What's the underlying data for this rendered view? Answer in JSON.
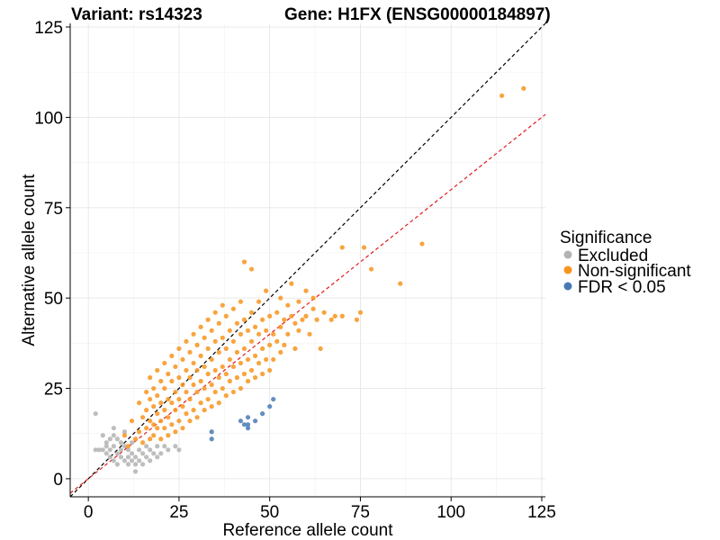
{
  "chart_data": {
    "type": "scatter",
    "title_left": "Variant: rs14323",
    "title_right": "Gene: H1FX (ENSG00000184897)",
    "xlabel": "Reference allele count",
    "ylabel": "Alternative allele count",
    "xlim": [
      -5,
      126
    ],
    "ylim": [
      -5,
      126
    ],
    "x_ticks": [
      0,
      25,
      50,
      75,
      100,
      125
    ],
    "y_ticks": [
      0,
      25,
      50,
      75,
      100,
      125
    ],
    "grid": true,
    "legend": {
      "title": "Significance",
      "placement": "right",
      "items": [
        {
          "label": "Excluded",
          "color": "#b3b3b3"
        },
        {
          "label": "Non-significant",
          "color": "#f7941d"
        },
        {
          "label": "FDR < 0.05",
          "color": "#4a7ab5"
        }
      ]
    },
    "reference_lines": [
      {
        "name": "identity",
        "slope": 1.0,
        "intercept": 0,
        "color": "#000000",
        "style": "dashed"
      },
      {
        "name": "fit",
        "slope": 0.8,
        "intercept": 0,
        "color": "#e41a1c",
        "style": "dashed"
      }
    ],
    "series": [
      {
        "name": "Excluded",
        "color": "#b3b3b3",
        "points": [
          [
            2,
            18
          ],
          [
            2,
            8
          ],
          [
            3,
            8
          ],
          [
            4,
            8
          ],
          [
            4,
            12
          ],
          [
            5,
            10
          ],
          [
            5,
            9
          ],
          [
            5,
            7
          ],
          [
            6,
            11
          ],
          [
            6,
            8
          ],
          [
            6,
            6
          ],
          [
            7,
            12
          ],
          [
            7,
            14
          ],
          [
            7,
            9
          ],
          [
            7,
            5
          ],
          [
            8,
            11
          ],
          [
            8,
            7
          ],
          [
            8,
            4
          ],
          [
            9,
            10
          ],
          [
            9,
            8
          ],
          [
            9,
            6
          ],
          [
            10,
            13
          ],
          [
            10,
            9
          ],
          [
            10,
            5
          ],
          [
            11,
            8
          ],
          [
            11,
            6
          ],
          [
            11,
            4
          ],
          [
            12,
            10
          ],
          [
            12,
            7
          ],
          [
            12,
            5
          ],
          [
            13,
            6
          ],
          [
            13,
            4
          ],
          [
            13,
            2
          ],
          [
            14,
            8
          ],
          [
            14,
            5
          ],
          [
            15,
            7
          ],
          [
            15,
            4
          ],
          [
            16,
            6
          ],
          [
            16,
            9
          ],
          [
            17,
            5
          ],
          [
            17,
            8
          ],
          [
            18,
            7
          ],
          [
            19,
            6
          ],
          [
            19,
            9
          ],
          [
            20,
            7
          ],
          [
            21,
            9
          ],
          [
            22,
            8
          ],
          [
            24,
            9
          ],
          [
            25,
            8
          ]
        ]
      },
      {
        "name": "Non-significant",
        "color": "#f7941d",
        "points": [
          [
            10,
            12
          ],
          [
            11,
            9
          ],
          [
            12,
            16
          ],
          [
            13,
            11
          ],
          [
            14,
            21
          ],
          [
            14,
            13
          ],
          [
            15,
            17
          ],
          [
            15,
            10
          ],
          [
            16,
            24
          ],
          [
            16,
            19
          ],
          [
            16,
            14
          ],
          [
            17,
            28
          ],
          [
            17,
            22
          ],
          [
            17,
            16
          ],
          [
            17,
            11
          ],
          [
            18,
            25
          ],
          [
            18,
            20
          ],
          [
            18,
            15
          ],
          [
            18,
            12
          ],
          [
            19,
            30
          ],
          [
            19,
            23
          ],
          [
            19,
            18
          ],
          [
            19,
            14
          ],
          [
            20,
            27
          ],
          [
            20,
            21
          ],
          [
            20,
            16
          ],
          [
            20,
            11
          ],
          [
            21,
            32
          ],
          [
            21,
            25
          ],
          [
            21,
            19
          ],
          [
            21,
            14
          ],
          [
            22,
            29
          ],
          [
            22,
            22
          ],
          [
            22,
            17
          ],
          [
            22,
            12
          ],
          [
            23,
            34
          ],
          [
            23,
            27
          ],
          [
            23,
            21
          ],
          [
            23,
            15
          ],
          [
            24,
            31
          ],
          [
            24,
            24
          ],
          [
            24,
            19
          ],
          [
            24,
            13
          ],
          [
            25,
            36
          ],
          [
            25,
            28
          ],
          [
            25,
            22
          ],
          [
            25,
            16
          ],
          [
            26,
            33
          ],
          [
            26,
            26
          ],
          [
            26,
            20
          ],
          [
            26,
            14
          ],
          [
            27,
            38
          ],
          [
            27,
            30
          ],
          [
            27,
            24
          ],
          [
            27,
            18
          ],
          [
            28,
            35
          ],
          [
            28,
            28
          ],
          [
            28,
            22
          ],
          [
            28,
            16
          ],
          [
            29,
            40
          ],
          [
            29,
            32
          ],
          [
            29,
            26
          ],
          [
            29,
            19
          ],
          [
            30,
            37
          ],
          [
            30,
            30
          ],
          [
            30,
            24
          ],
          [
            30,
            17
          ],
          [
            31,
            42
          ],
          [
            31,
            34
          ],
          [
            31,
            27
          ],
          [
            31,
            21
          ],
          [
            32,
            39
          ],
          [
            32,
            31
          ],
          [
            32,
            25
          ],
          [
            32,
            19
          ],
          [
            33,
            44
          ],
          [
            33,
            36
          ],
          [
            33,
            29
          ],
          [
            33,
            22
          ],
          [
            34,
            41
          ],
          [
            34,
            33
          ],
          [
            34,
            26
          ],
          [
            34,
            20
          ],
          [
            35,
            46
          ],
          [
            35,
            38
          ],
          [
            35,
            30
          ],
          [
            35,
            24
          ],
          [
            36,
            43
          ],
          [
            36,
            35
          ],
          [
            36,
            28
          ],
          [
            36,
            21
          ],
          [
            37,
            48
          ],
          [
            37,
            39
          ],
          [
            37,
            31
          ],
          [
            37,
            25
          ],
          [
            38,
            45
          ],
          [
            38,
            36
          ],
          [
            38,
            29
          ],
          [
            38,
            23
          ],
          [
            39,
            41
          ],
          [
            39,
            33
          ],
          [
            39,
            27
          ],
          [
            40,
            47
          ],
          [
            40,
            38
          ],
          [
            40,
            31
          ],
          [
            40,
            24
          ],
          [
            41,
            43
          ],
          [
            41,
            35
          ],
          [
            41,
            28
          ],
          [
            42,
            49
          ],
          [
            42,
            40
          ],
          [
            42,
            32
          ],
          [
            42,
            25
          ],
          [
            43,
            60
          ],
          [
            43,
            44
          ],
          [
            43,
            36
          ],
          [
            43,
            29
          ],
          [
            44,
            41
          ],
          [
            44,
            33
          ],
          [
            44,
            27
          ],
          [
            45,
            58
          ],
          [
            45,
            46
          ],
          [
            45,
            38
          ],
          [
            45,
            30
          ],
          [
            46,
            42
          ],
          [
            46,
            34
          ],
          [
            46,
            28
          ],
          [
            47,
            49
          ],
          [
            47,
            40
          ],
          [
            47,
            32
          ],
          [
            48,
            44
          ],
          [
            48,
            36
          ],
          [
            48,
            29
          ],
          [
            49,
            52
          ],
          [
            49,
            41
          ],
          [
            49,
            33
          ],
          [
            50,
            45
          ],
          [
            50,
            37
          ],
          [
            50,
            30
          ],
          [
            51,
            40
          ],
          [
            51,
            33
          ],
          [
            52,
            46
          ],
          [
            52,
            38
          ],
          [
            53,
            50
          ],
          [
            53,
            42
          ],
          [
            53,
            35
          ],
          [
            54,
            44
          ],
          [
            54,
            37
          ],
          [
            55,
            48
          ],
          [
            55,
            40
          ],
          [
            56,
            54
          ],
          [
            56,
            45
          ],
          [
            57,
            43
          ],
          [
            57,
            36
          ],
          [
            58,
            49
          ],
          [
            58,
            41
          ],
          [
            59,
            44
          ],
          [
            60,
            52
          ],
          [
            60,
            45
          ],
          [
            61,
            40
          ],
          [
            62,
            47
          ],
          [
            62,
            50
          ],
          [
            63,
            44
          ],
          [
            64,
            36
          ],
          [
            65,
            46
          ],
          [
            67,
            44
          ],
          [
            68,
            45
          ],
          [
            70,
            45
          ],
          [
            70,
            64
          ],
          [
            74,
            44
          ],
          [
            75,
            46
          ],
          [
            76,
            64
          ],
          [
            78,
            58
          ],
          [
            86,
            54
          ],
          [
            92,
            65
          ],
          [
            114,
            106
          ],
          [
            120,
            108
          ]
        ]
      },
      {
        "name": "FDR < 0.05",
        "color": "#4a7ab5",
        "points": [
          [
            34,
            11
          ],
          [
            34,
            13
          ],
          [
            42,
            16
          ],
          [
            43,
            15
          ],
          [
            44,
            14
          ],
          [
            44,
            17
          ],
          [
            46,
            16
          ],
          [
            48,
            18
          ],
          [
            50,
            20
          ],
          [
            51,
            22
          ],
          [
            44,
            15
          ]
        ]
      }
    ]
  }
}
